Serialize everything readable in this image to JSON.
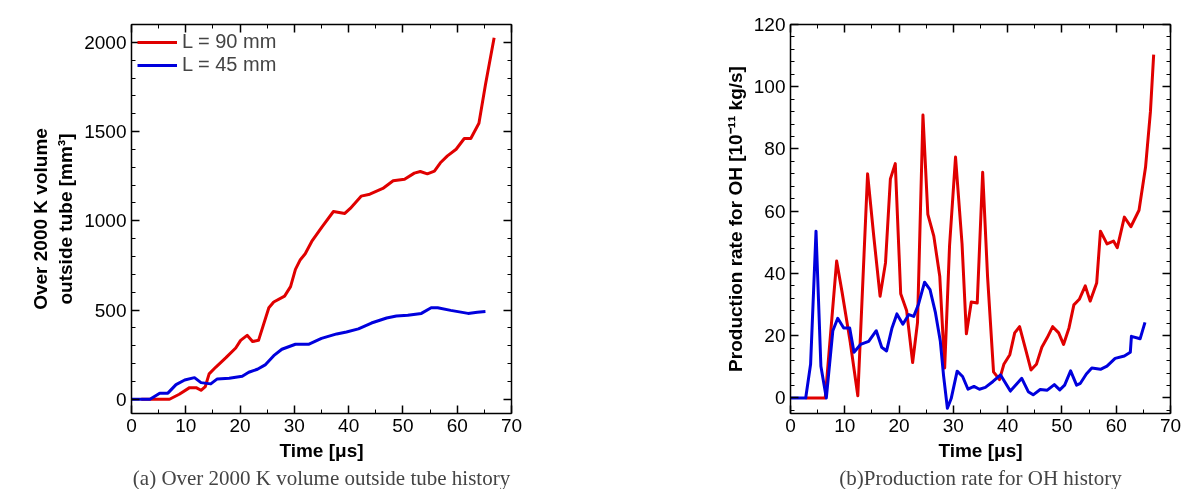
{
  "chart_data": [
    {
      "type": "line",
      "xlabel": "Time [μs]",
      "ylabel": "Over 2000 K volume\noutside tube [mm³]",
      "annotations": [
        "(a) Over 2000 K volume outside tube history"
      ],
      "xlim": [
        0,
        70
      ],
      "ylim": [
        -80,
        2100
      ],
      "xticks": [
        0,
        10,
        20,
        30,
        40,
        50,
        60,
        70
      ],
      "yticks": [
        0,
        500,
        1000,
        1500,
        2000
      ],
      "grid": false,
      "legend": "top left",
      "line_style": "solid",
      "marker": "none",
      "series": [
        {
          "name": "L = 90 mm",
          "color": "#e00000",
          "x": [
            1.8,
            7,
            8.8,
            10.7,
            11.9,
            12.8,
            13.6,
            14.3,
            15.5,
            17.4,
            19.2,
            20.1,
            21.3,
            22.3,
            23.4,
            25.3,
            26.2,
            28.2,
            29.3,
            30.2,
            31.1,
            32,
            33.2,
            35.1,
            37.2,
            39.3,
            40.3,
            42.3,
            43.9,
            46.3,
            48.2,
            50.3,
            52.1,
            53.2,
            54.5,
            55.8,
            56.9,
            58.2,
            59.8,
            61.3,
            62.5,
            64,
            65.2,
            66.8
          ],
          "values": [
            0,
            0,
            28,
            65,
            65,
            50,
            71,
            142,
            179,
            233,
            287,
            330,
            358,
            323,
            330,
            513,
            545,
            578,
            631,
            728,
            782,
            815,
            884,
            966,
            1052,
            1041,
            1069,
            1138,
            1149,
            1181,
            1224,
            1233,
            1267,
            1276,
            1263,
            1278,
            1325,
            1364,
            1401,
            1461,
            1461,
            1547,
            1763,
            2026
          ]
        },
        {
          "name": "L = 45 mm",
          "color": "#0000dd",
          "x": [
            0,
            3.4,
            5.2,
            6.7,
            8.2,
            9.8,
            11.6,
            12.8,
            14.6,
            15.8,
            18,
            20.4,
            21.6,
            23.2,
            24.7,
            26.2,
            27.7,
            30.2,
            32.6,
            35,
            37.8,
            39.6,
            41.8,
            44.2,
            47,
            48.8,
            50.9,
            53.4,
            55.2,
            56.4,
            58.8,
            62,
            63.7,
            65.2
          ],
          "values": [
            0,
            0,
            34,
            34,
            82,
            108,
            121,
            93,
            86,
            114,
            118,
            129,
            151,
            168,
            194,
            244,
            280,
            308,
            308,
            341,
            366,
            377,
            394,
            427,
            455,
            466,
            470,
            481,
            513,
            513,
            498,
            481,
            487,
            491
          ]
        }
      ]
    },
    {
      "type": "line",
      "xlabel": "Time [μs]",
      "ylabel": "Production rate for OH [10⁻¹¹ kg/s]",
      "annotations": [
        "(b)Production rate for OH history"
      ],
      "xlim": [
        0,
        70
      ],
      "ylim": [
        -5,
        120
      ],
      "xticks": [
        0,
        10,
        20,
        30,
        40,
        50,
        60,
        70
      ],
      "yticks": [
        0,
        20,
        40,
        60,
        80,
        100,
        120
      ],
      "grid": false,
      "line_style": "solid",
      "marker": "none",
      "series": [
        {
          "color": "#e00000",
          "x": [
            2.8,
            6.4,
            8.5,
            9.5,
            11,
            12.4,
            14.2,
            15.3,
            16.5,
            17.5,
            18.4,
            19.3,
            20.3,
            21.4,
            22.5,
            23.4,
            24.4,
            25.3,
            26.4,
            27.5,
            28.4,
            29.3,
            30.4,
            31.6,
            32.4,
            33.3,
            34.4,
            35.4,
            36.3,
            37.4,
            38.5,
            39.3,
            40.4,
            41.3,
            42.2,
            43.3,
            44.3,
            45.3,
            46.3,
            47.3,
            48.3,
            49.4,
            50.3,
            51.3,
            52.2,
            53.2,
            54.3,
            55.2,
            56.4,
            57.1,
            58.3,
            59.5,
            60.2,
            61.5,
            62.7,
            64.2,
            65.4,
            66.3,
            66.9
          ],
          "values": [
            0,
            0,
            44,
            34,
            18,
            0.7,
            72,
            52.6,
            32.7,
            43.4,
            70.4,
            75.3,
            33.5,
            28,
            11.4,
            24.3,
            90.9,
            59,
            52,
            39,
            9.6,
            48.9,
            77.4,
            49.5,
            20.6,
            30.8,
            30.5,
            72.5,
            39,
            8.4,
            5.9,
            10.8,
            13.9,
            20.9,
            22.9,
            15.7,
            9,
            10.8,
            16.3,
            19.4,
            22.9,
            20.9,
            17.2,
            22.5,
            29.9,
            31.7,
            36,
            31.1,
            36.9,
            53.6,
            49.5,
            50.4,
            48.3,
            58.1,
            55,
            60.3,
            74.1,
            91.9,
            110.3
          ]
        },
        {
          "color": "#0000dd",
          "x": [
            0,
            2.8,
            3.7,
            4.7,
            5.6,
            6.6,
            7.8,
            8.7,
            9.8,
            10.9,
            11.7,
            12.9,
            14.4,
            15.8,
            16.8,
            17.7,
            18.7,
            19.6,
            20.7,
            21.8,
            22.7,
            23.6,
            24.7,
            25.7,
            26.7,
            27.6,
            28.2,
            28.9,
            29.6,
            30.7,
            31.7,
            32.7,
            33.8,
            34.8,
            35.9,
            37.3,
            38.7,
            40.5,
            42.6,
            43.8,
            44.7,
            46,
            47.3,
            48.6,
            49.6,
            50.5,
            51.6,
            52.7,
            53.4,
            54.5,
            55.5,
            57.1,
            58.3,
            59.8,
            61.5,
            62.6,
            62.8,
            64.4,
            65.3
          ],
          "values": [
            0,
            0,
            10.8,
            53.6,
            10.2,
            0,
            21.6,
            25.6,
            22.5,
            22.5,
            14.7,
            17.2,
            18.2,
            21.6,
            16.3,
            15.1,
            22.5,
            27,
            23.7,
            26.8,
            26.2,
            30.2,
            37.2,
            34.8,
            27.4,
            18.2,
            7.1,
            -3.3,
            -0.2,
            8.6,
            6.9,
            2.8,
            3.7,
            2.8,
            3.4,
            5.3,
            7.4,
            2.2,
            6.3,
            2,
            1,
            2.7,
            2.5,
            4.3,
            2.6,
            4.1,
            8.7,
            4.1,
            4.7,
            7.7,
            9.6,
            9.2,
            10.2,
            12.7,
            13.5,
            14.7,
            19.8,
            19,
            24.3
          ]
        }
      ]
    }
  ]
}
